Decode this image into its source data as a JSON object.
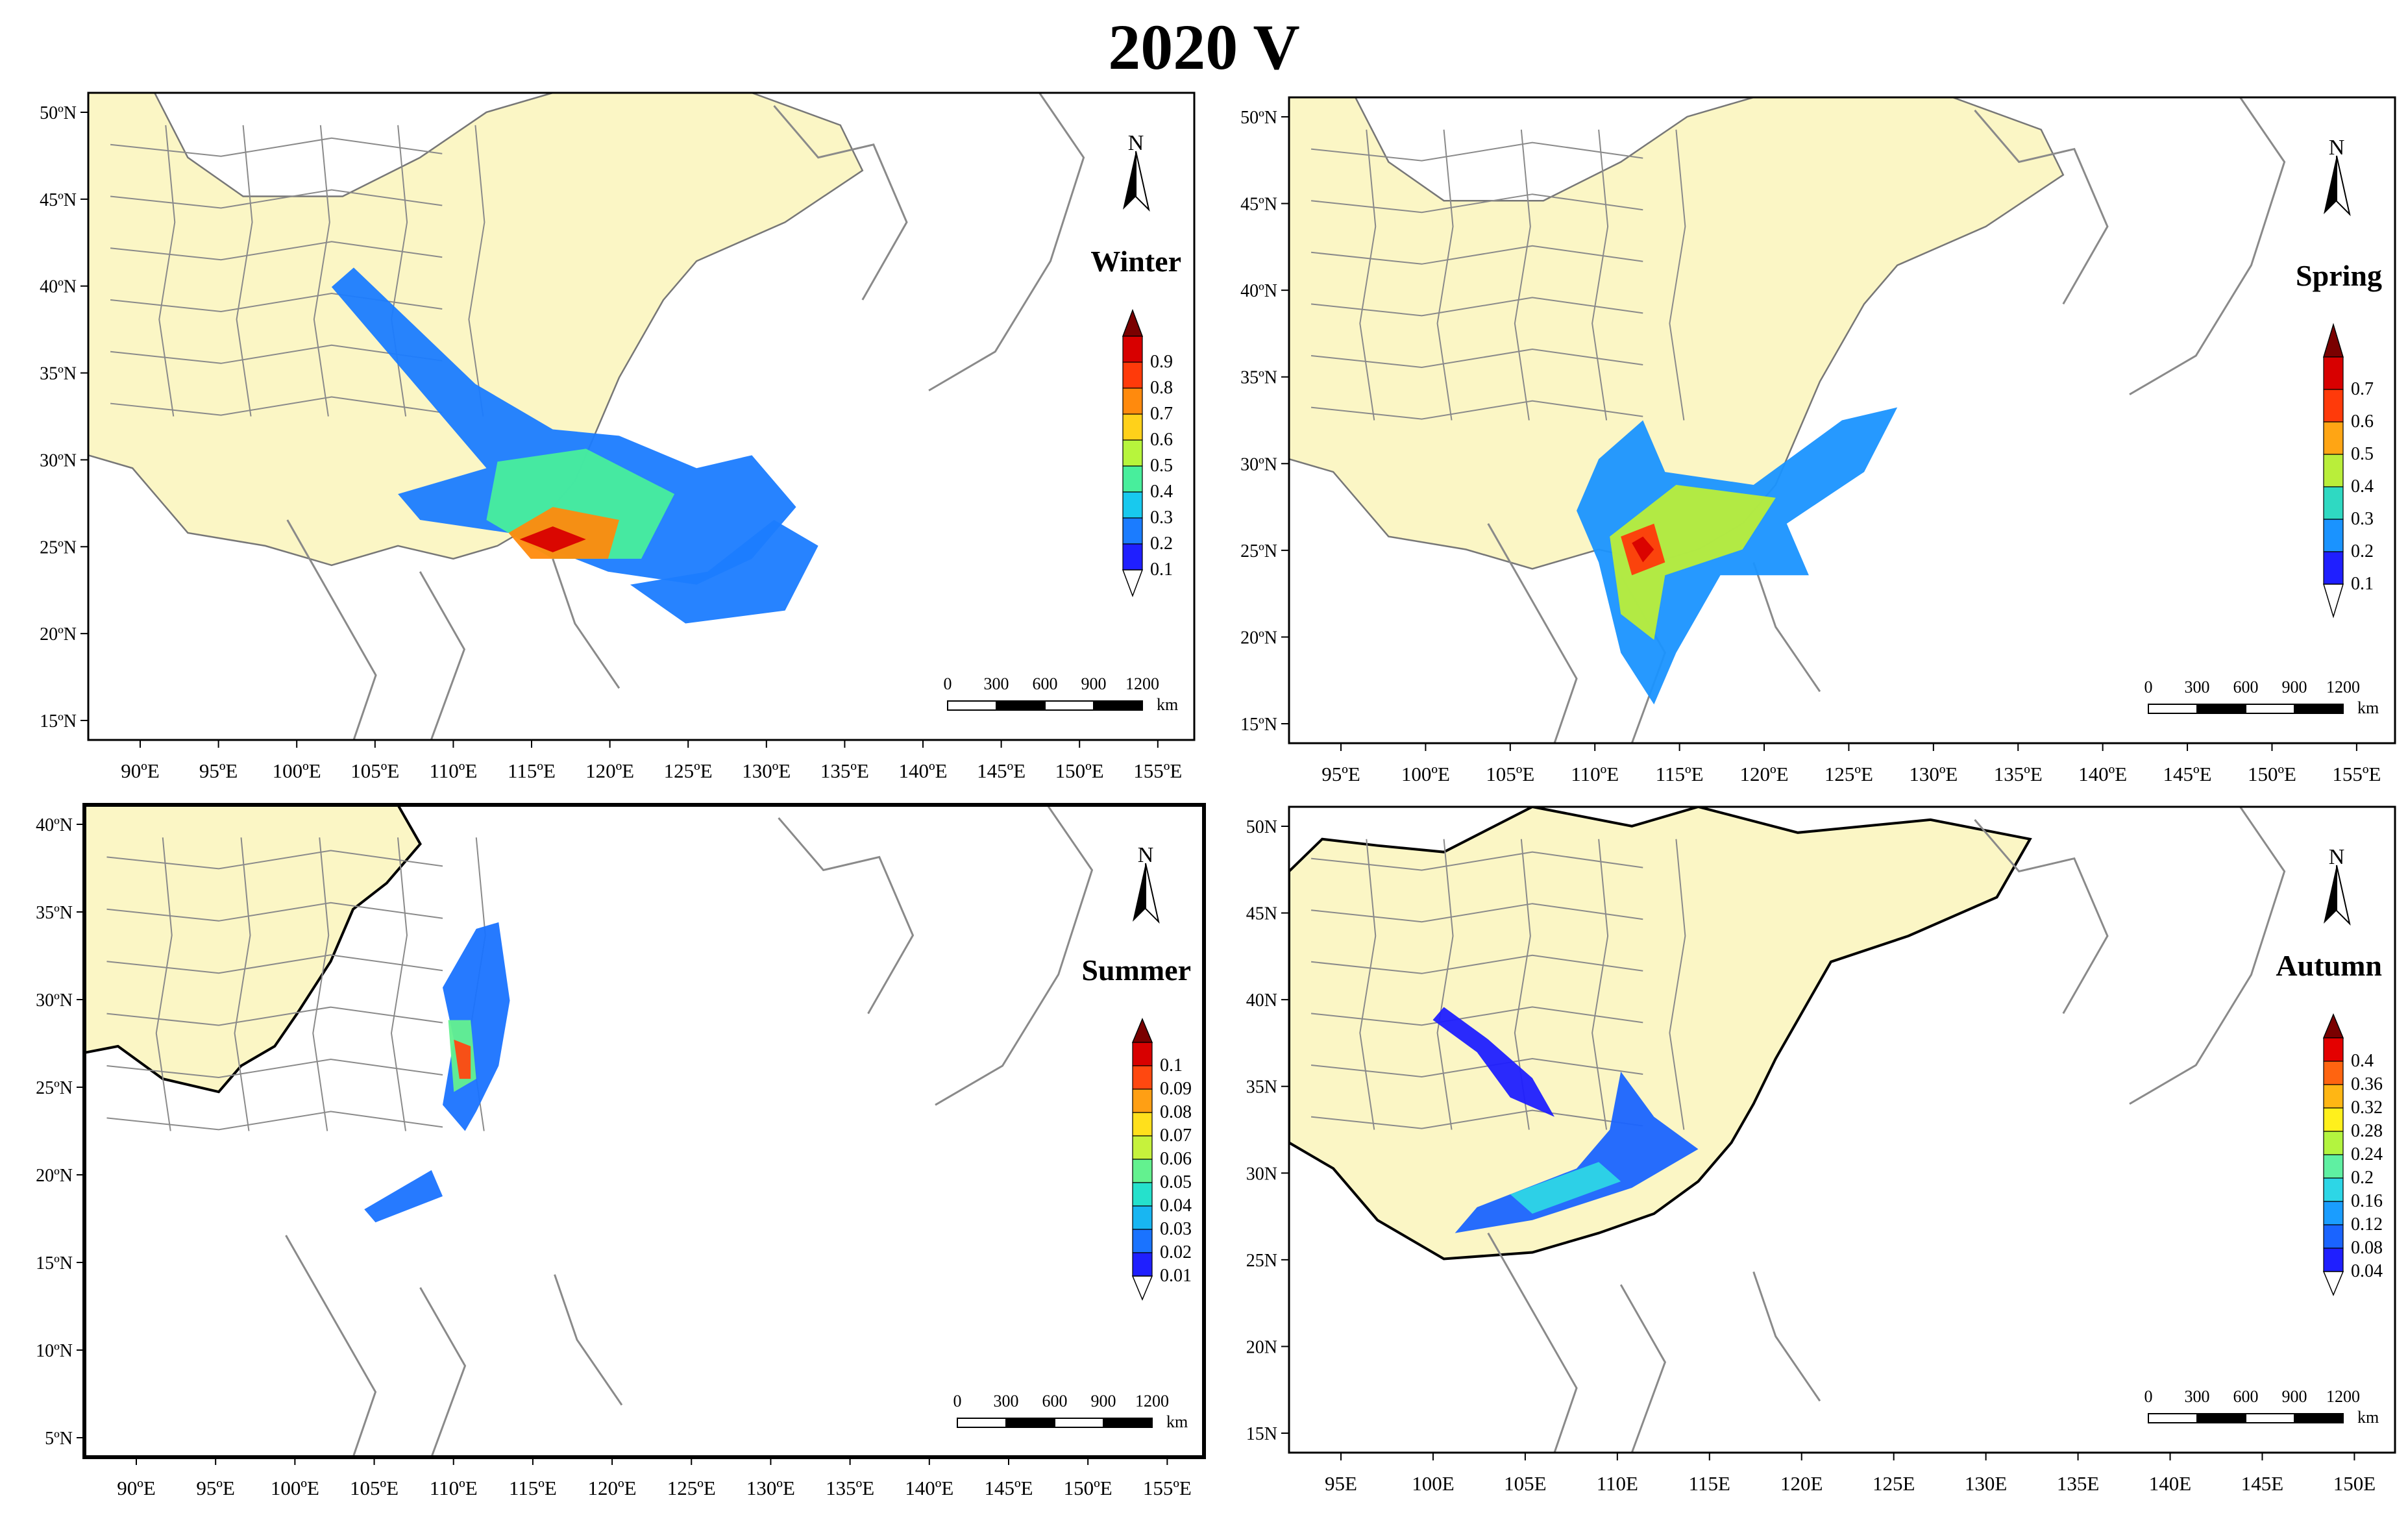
{
  "title": "2020 V",
  "colors": {
    "land": "#fbf6c5",
    "boundary": "#8a8a8a",
    "coast_dark": "#000000"
  },
  "panels": [
    {
      "id": "winter",
      "season": "Winter",
      "lon_ticks": [
        "90ºE",
        "95ºE",
        "100ºE",
        "105ºE",
        "110ºE",
        "115ºE",
        "120ºE",
        "125ºE",
        "130ºE",
        "135ºE",
        "140ºE",
        "145ºE",
        "150ºE",
        "155ºE"
      ],
      "lat_ticks": [
        "50ºN",
        "45ºN",
        "40ºN",
        "35ºN",
        "30ºN",
        "25ºN",
        "20ºN",
        "15ºN"
      ],
      "legend_values": [
        "0.9",
        "0.8",
        "0.7",
        "0.6",
        "0.5",
        "0.4",
        "0.3",
        "0.2",
        "0.1"
      ],
      "scale_bar": {
        "ticks": [
          "0",
          "300",
          "600",
          "900",
          "1200"
        ],
        "unit": "km"
      },
      "north_label": "N"
    },
    {
      "id": "spring",
      "season": "Spring",
      "lon_ticks": [
        "95ºE",
        "100ºE",
        "105ºE",
        "110ºE",
        "115ºE",
        "120ºE",
        "125ºE",
        "130ºE",
        "135ºE",
        "140ºE",
        "145ºE",
        "150ºE",
        "155ºE"
      ],
      "lat_ticks": [
        "50ºN",
        "45ºN",
        "40ºN",
        "35ºN",
        "30ºN",
        "25ºN",
        "20ºN",
        "15ºN"
      ],
      "legend_values": [
        "0.7",
        "0.6",
        "0.5",
        "0.4",
        "0.3",
        "0.2",
        "0.1"
      ],
      "scale_bar": {
        "ticks": [
          "0",
          "300",
          "600",
          "900",
          "1200"
        ],
        "unit": "km"
      },
      "north_label": "N"
    },
    {
      "id": "summer",
      "season": "Summer",
      "lon_ticks": [
        "90ºE",
        "95ºE",
        "100ºE",
        "105ºE",
        "110ºE",
        "115ºE",
        "120ºE",
        "125ºE",
        "130ºE",
        "135ºE",
        "140ºE",
        "145ºE",
        "150ºE",
        "155ºE"
      ],
      "lat_ticks": [
        "40ºN",
        "35ºN",
        "30ºN",
        "25ºN",
        "20ºN",
        "15ºN",
        "10ºN",
        "5ºN"
      ],
      "legend_values": [
        "0.1",
        "0.09",
        "0.08",
        "0.07",
        "0.06",
        "0.05",
        "0.04",
        "0.03",
        "0.02",
        "0.01"
      ],
      "scale_bar": {
        "ticks": [
          "0",
          "300",
          "600",
          "900",
          "1200"
        ],
        "unit": "km"
      },
      "north_label": "N"
    },
    {
      "id": "autumn",
      "season": "Autumn",
      "lon_ticks": [
        "95E",
        "100E",
        "105E",
        "110E",
        "115E",
        "120E",
        "125E",
        "130E",
        "135E",
        "140E",
        "145E",
        "150E"
      ],
      "lat_ticks": [
        "50N",
        "45N",
        "40N",
        "35N",
        "30N",
        "25N",
        "20N",
        "15N"
      ],
      "legend_values": [
        "0.4",
        "0.36",
        "0.32",
        "0.28",
        "0.24",
        "0.2",
        "0.16",
        "0.12",
        "0.08",
        "0.04"
      ],
      "scale_bar": {
        "ticks": [
          "0",
          "300",
          "600",
          "900",
          "1200"
        ],
        "unit": "km"
      },
      "north_label": "N"
    }
  ]
}
